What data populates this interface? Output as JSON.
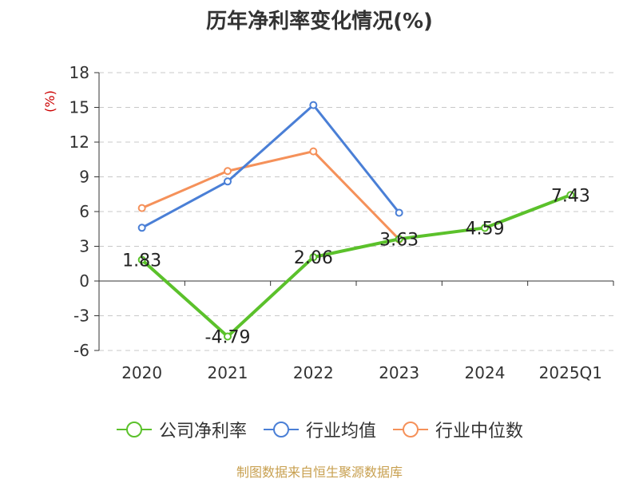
{
  "title": "历年净利率变化情况(%)",
  "source": "制图数据来自恒生聚源数据库",
  "chart_data": {
    "type": "line",
    "title": "历年净利率变化情况(%)",
    "categories": [
      "2020",
      "2021",
      "2022",
      "2023",
      "2024",
      "2025Q1"
    ],
    "ylabel": "(%)",
    "ylim": [
      -6,
      18
    ],
    "yticks": [
      "18",
      "15",
      "12",
      "9",
      "6",
      "3",
      "0",
      "-3",
      "-6"
    ],
    "grid": true,
    "legend_position": "bottom",
    "series": [
      {
        "name": "公司净利率",
        "color": "#5bc12b",
        "values": [
          1.83,
          -4.79,
          2.06,
          3.63,
          4.59,
          7.43
        ],
        "labels": [
          "1.83",
          "-4.79",
          "2.06",
          "3.63",
          "4.59",
          "7.43"
        ]
      },
      {
        "name": "行业均值",
        "color": "#4a7fd6",
        "values": [
          4.6,
          8.6,
          15.2,
          5.9,
          null,
          null
        ]
      },
      {
        "name": "行业中位数",
        "color": "#f5915a",
        "values": [
          6.3,
          9.5,
          11.2,
          3.6,
          null,
          null
        ]
      }
    ]
  }
}
